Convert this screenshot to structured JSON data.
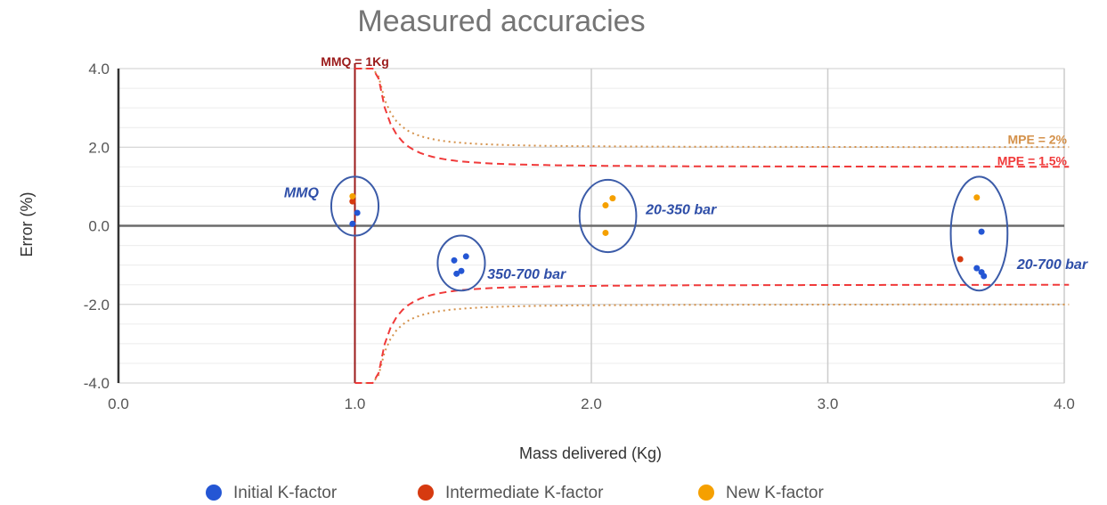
{
  "chart_data": {
    "type": "scatter",
    "title": "Measured accuracies",
    "xlabel": "Mass delivered (Kg)",
    "ylabel": "Error (%)",
    "xlim": [
      0,
      4
    ],
    "ylim": [
      -4,
      4
    ],
    "x_ticks": [
      {
        "value": 0,
        "label": "0.0"
      },
      {
        "value": 1,
        "label": "1.0"
      },
      {
        "value": 2,
        "label": "2.0"
      },
      {
        "value": 3,
        "label": "3.0"
      },
      {
        "value": 4,
        "label": "4.0"
      }
    ],
    "y_ticks": [
      {
        "value": 4,
        "label": "4.0"
      },
      {
        "value": 2,
        "label": "2.0"
      },
      {
        "value": 0,
        "label": "0.0"
      },
      {
        "value": -2,
        "label": "-2.0"
      },
      {
        "value": -4,
        "label": "-4.0"
      }
    ],
    "minor_y_gridlines": [
      -3.5,
      -3,
      -2.5,
      -1.5,
      -1,
      -0.5,
      0.5,
      1,
      1.5,
      2.5,
      3,
      3.5
    ],
    "grid": true,
    "legend_position": "bottom",
    "series": [
      {
        "name": "Initial K-factor",
        "color": "#2456d4",
        "points": [
          [
            0.99,
            0.05
          ],
          [
            1.01,
            0.33
          ],
          [
            1.42,
            -0.88
          ],
          [
            1.47,
            -0.78
          ],
          [
            1.45,
            -1.15
          ],
          [
            1.43,
            -1.22
          ],
          [
            3.65,
            -0.15
          ],
          [
            3.63,
            -1.08
          ],
          [
            3.65,
            -1.18
          ],
          [
            3.66,
            -1.28
          ]
        ]
      },
      {
        "name": "Intermediate K-factor",
        "color": "#d63a10",
        "points": [
          [
            0.99,
            0.62
          ],
          [
            3.56,
            -0.85
          ]
        ]
      },
      {
        "name": "New K-factor",
        "color": "#f5a000",
        "points": [
          [
            0.99,
            0.75
          ],
          [
            2.06,
            0.52
          ],
          [
            2.09,
            0.7
          ],
          [
            2.06,
            -0.18
          ],
          [
            3.63,
            0.72
          ]
        ]
      }
    ],
    "reference_lines": [
      {
        "label": "MMQ = 1Kg",
        "type": "vertical",
        "x": 1,
        "color": "#9b1b1b"
      },
      {
        "label": "MPE = 2%",
        "type": "envelope",
        "limit": 2,
        "color": "#d4914a",
        "style": "dotted"
      },
      {
        "label": "MPE = 1.5%",
        "type": "envelope",
        "limit": 1.5,
        "color": "#f03a3a",
        "style": "dashed"
      }
    ],
    "annotations": [
      {
        "text": "MMQ",
        "center": [
          1.0,
          0.5
        ],
        "radius": [
          0.1,
          0.75
        ],
        "text_at": [
          0.7,
          0.72
        ]
      },
      {
        "text": "350-700 bar",
        "center": [
          1.45,
          -0.95
        ],
        "radius": [
          0.1,
          0.7
        ],
        "text_at": [
          1.56,
          -1.35
        ]
      },
      {
        "text": "20-350 bar",
        "center": [
          2.07,
          0.25
        ],
        "radius": [
          0.12,
          0.92
        ],
        "text_at": [
          2.23,
          0.3
        ]
      },
      {
        "text": "20-700 bar",
        "center": [
          3.64,
          -0.2
        ],
        "radius": [
          0.12,
          1.45
        ],
        "text_at": [
          3.8,
          -1.1
        ]
      }
    ]
  }
}
